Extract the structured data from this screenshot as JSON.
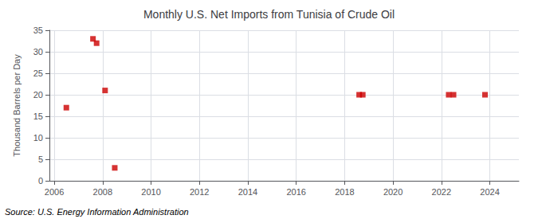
{
  "chart_data": {
    "type": "scatter",
    "title": "Monthly U.S. Net Imports from Tunisia of Crude Oil",
    "ylabel": "Thousand Barrels per Day",
    "annotations": [
      "Source: U.S. Energy Information Administration"
    ],
    "x": [
      2006.5,
      2007.6,
      2007.75,
      2008.1,
      2008.5,
      2018.6,
      2018.75,
      2022.3,
      2022.5,
      2023.8
    ],
    "values": [
      17,
      33,
      32,
      21,
      3,
      20,
      20,
      20,
      20,
      20
    ],
    "color": "#cc0000",
    "marker": "square",
    "xlim": [
      2005.8,
      2025.2
    ],
    "xticks": [
      2006,
      2008,
      2010,
      2012,
      2014,
      2016,
      2018,
      2020,
      2022,
      2024
    ],
    "ylim": [
      0,
      35
    ],
    "yticks": [
      0,
      5,
      10,
      15,
      20,
      25,
      30,
      35
    ],
    "grid": true
  }
}
